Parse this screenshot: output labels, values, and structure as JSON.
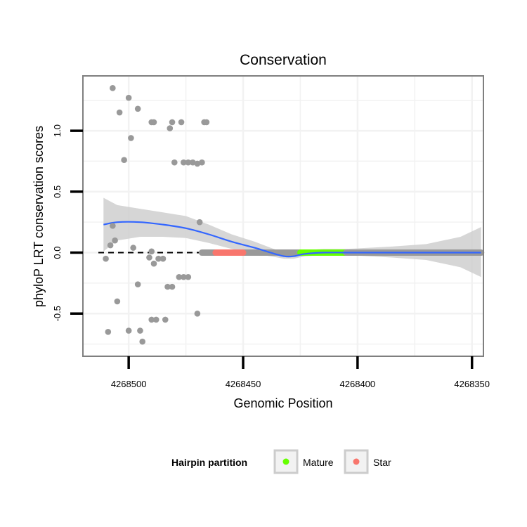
{
  "chart_data": {
    "type": "scatter",
    "title": "Conservation",
    "xlabel": "Genomic Position",
    "ylabel": "phyloP LRT conservation scores",
    "x_reversed": true,
    "xlim": [
      4268520,
      4268345
    ],
    "ylim": [
      -0.85,
      1.45
    ],
    "x_ticks": [
      4268500,
      4268450,
      4268400,
      4268350
    ],
    "x_tick_labels": [
      "4268500",
      "4268450",
      "4268400",
      "4268350"
    ],
    "y_ticks": [
      -0.5,
      0.0,
      0.5,
      1.0
    ],
    "y_tick_labels": [
      "-0.5",
      "0.0",
      "0.5",
      "1.0"
    ],
    "reference_line": {
      "y": 0,
      "style": "dashed"
    },
    "colors": {
      "points": "#999999",
      "smooth": "#3366ff",
      "ribbon": "#cccccc",
      "mature": "#66ff00",
      "star": "#f8766d",
      "panel_border": "#7f7f7f",
      "grid": "#f2f2f2"
    },
    "points": [
      {
        "x": 4268509,
        "y": -0.65
      },
      {
        "x": 4268507,
        "y": 1.35
      },
      {
        "x": 4268504,
        "y": 1.15
      },
      {
        "x": 4268500,
        "y": 1.27
      },
      {
        "x": 4268496,
        "y": 1.18
      },
      {
        "x": 4268490,
        "y": 1.07
      },
      {
        "x": 4268489,
        "y": 1.07
      },
      {
        "x": 4268482,
        "y": 1.02
      },
      {
        "x": 4268481,
        "y": 1.07
      },
      {
        "x": 4268477,
        "y": 1.07
      },
      {
        "x": 4268467,
        "y": 1.07
      },
      {
        "x": 4268466,
        "y": 1.07
      },
      {
        "x": 4268502,
        "y": 0.76
      },
      {
        "x": 4268480,
        "y": 0.74
      },
      {
        "x": 4268476,
        "y": 0.74
      },
      {
        "x": 4268474,
        "y": 0.74
      },
      {
        "x": 4268472,
        "y": 0.74
      },
      {
        "x": 4268470,
        "y": 0.73
      },
      {
        "x": 4268468,
        "y": 0.74
      },
      {
        "x": 4268499,
        "y": 0.94
      },
      {
        "x": 4268508,
        "y": 0.06
      },
      {
        "x": 4268507,
        "y": 0.22
      },
      {
        "x": 4268506,
        "y": 0.1
      },
      {
        "x": 4268498,
        "y": 0.04
      },
      {
        "x": 4268490,
        "y": 0.01
      },
      {
        "x": 4268487,
        "y": -0.05
      },
      {
        "x": 4268485,
        "y": -0.05
      },
      {
        "x": 4268510,
        "y": -0.05
      },
      {
        "x": 4268489,
        "y": -0.09
      },
      {
        "x": 4268491,
        "y": -0.04
      },
      {
        "x": 4268483,
        "y": -0.28
      },
      {
        "x": 4268481,
        "y": -0.28
      },
      {
        "x": 4268478,
        "y": -0.2
      },
      {
        "x": 4268476,
        "y": -0.2
      },
      {
        "x": 4268474,
        "y": -0.2
      },
      {
        "x": 4268496,
        "y": -0.26
      },
      {
        "x": 4268505,
        "y": -0.4
      },
      {
        "x": 4268469,
        "y": 0.25
      },
      {
        "x": 4268470,
        "y": -0.5
      },
      {
        "x": 4268488,
        "y": -0.55
      },
      {
        "x": 4268490,
        "y": -0.55
      },
      {
        "x": 4268484,
        "y": -0.55
      },
      {
        "x": 4268500,
        "y": -0.64
      },
      {
        "x": 4268495,
        "y": -0.64
      },
      {
        "x": 4268494,
        "y": -0.73
      }
    ],
    "flat_segments": [
      {
        "from": 4268468,
        "to": 4268442,
        "y": 0.0,
        "color": "gray"
      },
      {
        "from": 4268442,
        "to": 4268425,
        "y": 0.0,
        "color": "gray"
      },
      {
        "from": 4268425,
        "to": 4268405,
        "y": 0.0,
        "color": "mature"
      },
      {
        "from": 4268405,
        "to": 4268346,
        "y": 0.0,
        "color": "gray"
      },
      {
        "from": 4268462,
        "to": 4268450,
        "y": 0.0,
        "color": "star"
      }
    ],
    "smooth": {
      "x": [
        4268511,
        4268505,
        4268495,
        4268485,
        4268475,
        4268465,
        4268455,
        4268445,
        4268438,
        4268432,
        4268428,
        4268423,
        4268415,
        4268405,
        4268395,
        4268385,
        4268370,
        4268355,
        4268346
      ],
      "y": [
        0.23,
        0.25,
        0.25,
        0.23,
        0.2,
        0.15,
        0.09,
        0.04,
        0.0,
        -0.03,
        -0.03,
        -0.01,
        0.0,
        0.0,
        0.0,
        0.0,
        0.0,
        0.0,
        0.0
      ],
      "lower": [
        0.01,
        0.1,
        0.13,
        0.13,
        0.12,
        0.08,
        0.03,
        -0.01,
        -0.03,
        -0.05,
        -0.05,
        -0.03,
        -0.02,
        -0.02,
        -0.03,
        -0.04,
        -0.06,
        -0.12,
        -0.2
      ],
      "upper": [
        0.45,
        0.39,
        0.36,
        0.33,
        0.3,
        0.23,
        0.15,
        0.09,
        0.04,
        0.0,
        0.0,
        0.02,
        0.03,
        0.03,
        0.04,
        0.05,
        0.07,
        0.13,
        0.21
      ]
    },
    "legend": {
      "title": "Hairpin partition",
      "placement": "bottom",
      "items": [
        {
          "label": "Mature",
          "color": "#66ff00"
        },
        {
          "label": "Star",
          "color": "#f8766d"
        }
      ]
    }
  }
}
